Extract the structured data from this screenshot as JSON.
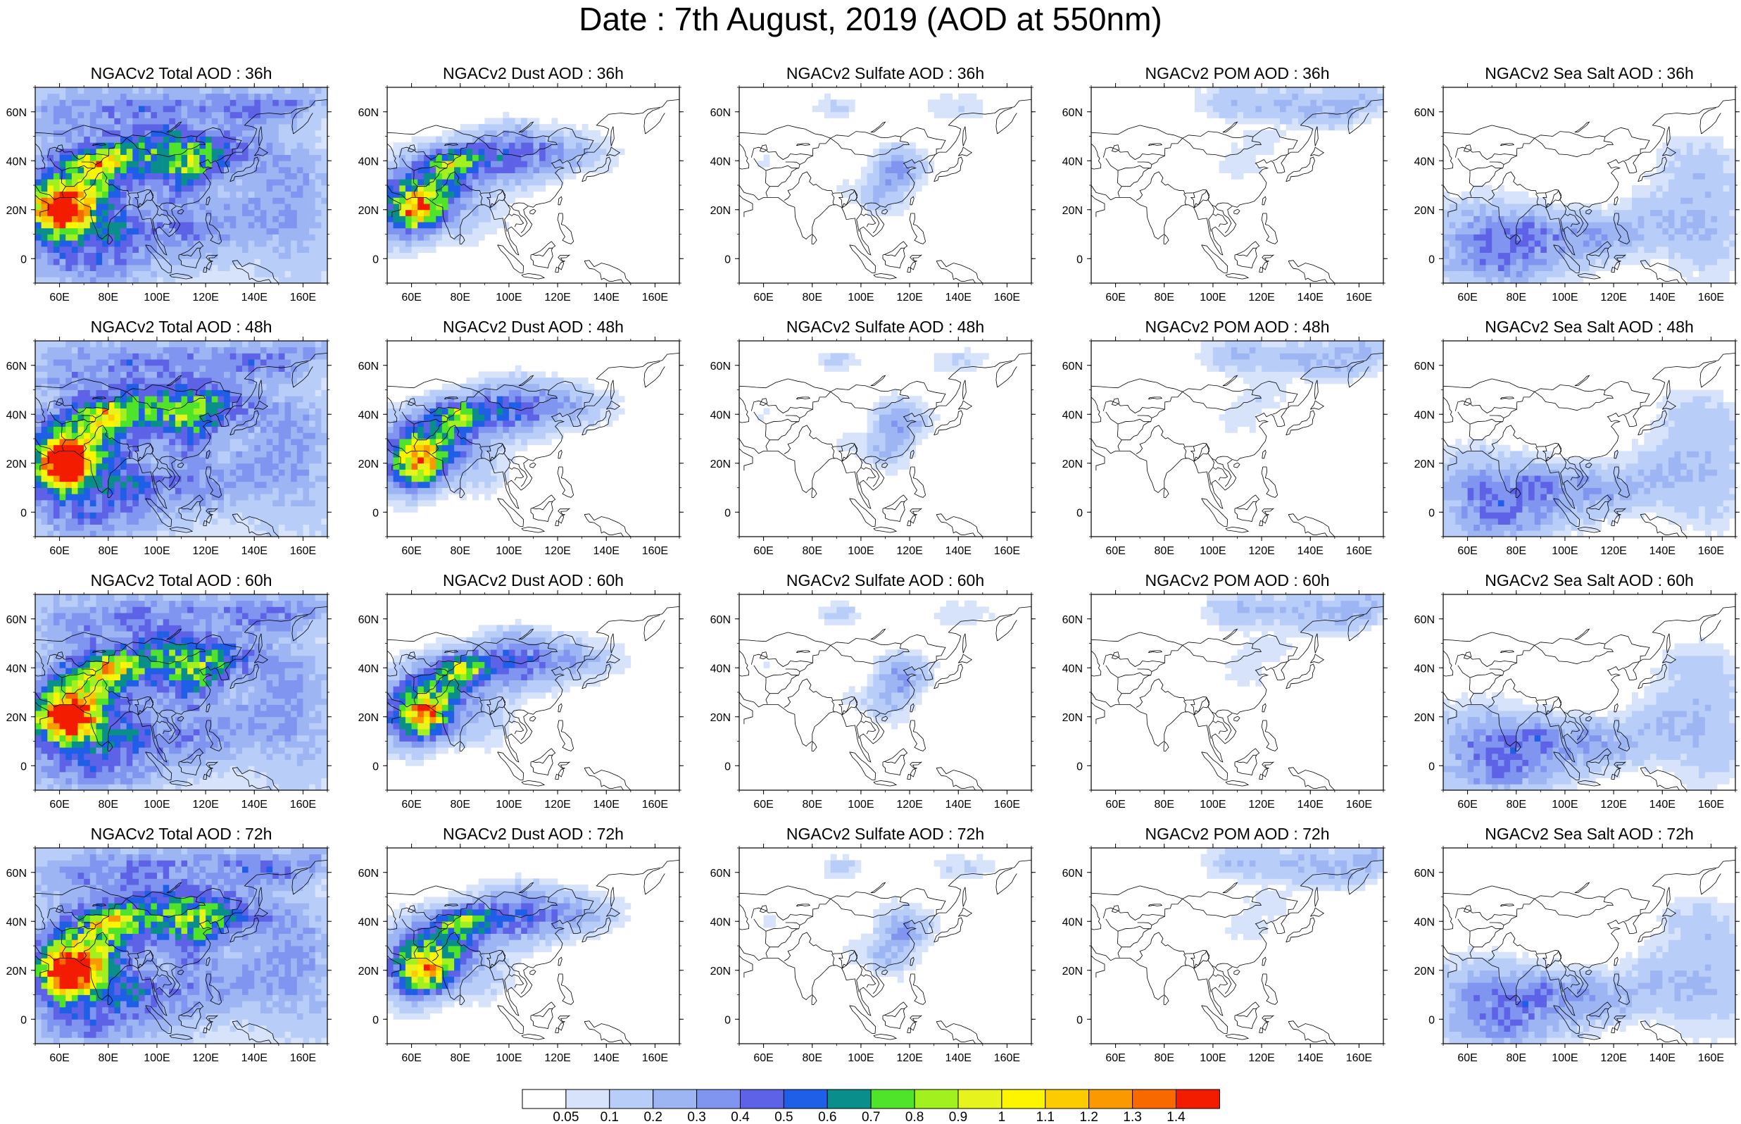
{
  "title": "Date : 7th August, 2019 (AOD at 550nm)",
  "panels": [
    {
      "title": "NGACv2 Total AOD : 36h",
      "species": "total",
      "hour": "36h"
    },
    {
      "title": "NGACv2 Dust AOD : 36h",
      "species": "dust",
      "hour": "36h"
    },
    {
      "title": "NGACv2 Sulfate AOD : 36h",
      "species": "sulfate",
      "hour": "36h"
    },
    {
      "title": "NGACv2 POM AOD : 36h",
      "species": "pom",
      "hour": "36h"
    },
    {
      "title": "NGACv2 Sea Salt AOD : 36h",
      "species": "seasalt",
      "hour": "36h"
    },
    {
      "title": "NGACv2 Total AOD : 48h",
      "species": "total",
      "hour": "48h"
    },
    {
      "title": "NGACv2 Dust AOD : 48h",
      "species": "dust",
      "hour": "48h"
    },
    {
      "title": "NGACv2 Sulfate AOD : 48h",
      "species": "sulfate",
      "hour": "48h"
    },
    {
      "title": "NGACv2 POM AOD : 48h",
      "species": "pom",
      "hour": "48h"
    },
    {
      "title": "NGACv2 Sea Salt AOD : 48h",
      "species": "seasalt",
      "hour": "48h"
    },
    {
      "title": "NGACv2 Total AOD : 60h",
      "species": "total",
      "hour": "60h"
    },
    {
      "title": "NGACv2 Dust AOD : 60h",
      "species": "dust",
      "hour": "60h"
    },
    {
      "title": "NGACv2 Sulfate AOD : 60h",
      "species": "sulfate",
      "hour": "60h"
    },
    {
      "title": "NGACv2 POM AOD : 60h",
      "species": "pom",
      "hour": "60h"
    },
    {
      "title": "NGACv2 Sea Salt AOD : 60h",
      "species": "seasalt",
      "hour": "60h"
    },
    {
      "title": "NGACv2 Total AOD : 72h",
      "species": "total",
      "hour": "72h"
    },
    {
      "title": "NGACv2 Dust AOD : 72h",
      "species": "dust",
      "hour": "72h"
    },
    {
      "title": "NGACv2 Sulfate AOD : 72h",
      "species": "sulfate",
      "hour": "72h"
    },
    {
      "title": "NGACv2 POM AOD : 72h",
      "species": "pom",
      "hour": "72h"
    },
    {
      "title": "NGACv2 Sea Salt  AOD : 72h",
      "species": "seasalt",
      "hour": "72h"
    }
  ],
  "map_extent": {
    "lon": [
      50,
      170
    ],
    "lat": [
      -10,
      70
    ]
  },
  "lon_ticks": [
    {
      "value": 60,
      "label": "60E"
    },
    {
      "value": 80,
      "label": "80E"
    },
    {
      "value": 100,
      "label": "100E"
    },
    {
      "value": 120,
      "label": "120E"
    },
    {
      "value": 140,
      "label": "140E"
    },
    {
      "value": 160,
      "label": "160E"
    }
  ],
  "lat_ticks": [
    {
      "value": 60,
      "label": "60N"
    },
    {
      "value": 40,
      "label": "40N"
    },
    {
      "value": 20,
      "label": "20N"
    },
    {
      "value": 0,
      "label": "0"
    }
  ],
  "colorbar": {
    "labels": [
      "0.05",
      "0.1",
      "0.2",
      "0.3",
      "0.4",
      "0.5",
      "0.6",
      "0.7",
      "0.8",
      "0.9",
      "1",
      "1.1",
      "1.2",
      "1.3",
      "1.4"
    ],
    "colors": [
      "#ffffff",
      "#d7e3fb",
      "#b8cdf8",
      "#9db6f3",
      "#8095ef",
      "#5d62e6",
      "#1f5fe8",
      "#0a8e8c",
      "#4fe32a",
      "#a2f01e",
      "#e7f31d",
      "#fdf500",
      "#fccb00",
      "#fb9a00",
      "#f86a00",
      "#f41c00"
    ]
  }
}
